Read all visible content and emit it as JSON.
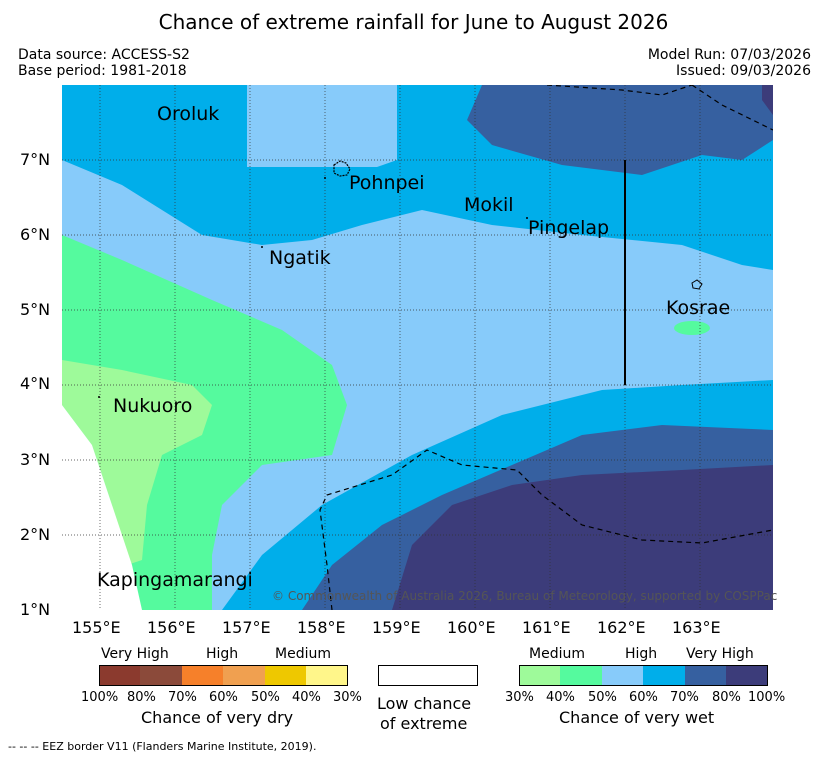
{
  "title": "Chance of extreme rainfall for June to August 2026",
  "meta": {
    "data_source": "Data source: ACCESS-S2",
    "base_period": "Base period: 1981-2018",
    "model_run": "Model Run: 07/03/2026",
    "issued": "Issued: 09/03/2026"
  },
  "map": {
    "lon_labels": [
      "155°E",
      "156°E",
      "157°E",
      "158°E",
      "159°E",
      "160°E",
      "161°E",
      "162°E",
      "163°E"
    ],
    "lat_labels": [
      "7°N",
      "6°N",
      "5°N",
      "4°N",
      "3°N",
      "2°N",
      "1°N"
    ],
    "places": {
      "oroluk": "Oroluk",
      "pohnpei": "Pohnpei",
      "mokil": "Mokil",
      "pingelap": "Pingelap",
      "ngatik": "Ngatik",
      "kosrae": "Kosrae",
      "nukuoro": "Nukuoro",
      "kapingamarangi": "Kapingamarangi"
    },
    "copyright": "© Commonwealth of Australia 2026, Bureau of Meteorology, supported by COSPPac"
  },
  "legend": {
    "dry": {
      "headers": [
        "Very High",
        "High",
        "Medium"
      ],
      "ticks": [
        "100%",
        "80%",
        "70%",
        "60%",
        "50%",
        "40%",
        "30%"
      ],
      "caption": "Chance of very dry",
      "colors": [
        "#8b3a2e",
        "#8b4a3a",
        "#f6802a",
        "#f0a050",
        "#eec800",
        "#fff68a"
      ]
    },
    "neutral": {
      "caption_line1": "Low chance",
      "caption_line2": "of extreme",
      "color": "#ffffff"
    },
    "wet": {
      "headers": [
        "Medium",
        "High",
        "Very High"
      ],
      "ticks": [
        "30%",
        "40%",
        "50%",
        "60%",
        "70%",
        "80%",
        "100%"
      ],
      "caption": "Chance of very wet",
      "colors": [
        "#9efa9a",
        "#55fa9e",
        "#87cbfa",
        "#00aeea",
        "#3660a0",
        "#3c3c7a"
      ]
    }
  },
  "colors": {
    "medium_wet": "#9efa9a",
    "medium_high_wet": "#55fa9e",
    "high_wet": "#87cbfa",
    "high2_wet": "#00aeea",
    "very_high_wet": "#3660a0",
    "very_high2_wet": "#3c3c7a"
  },
  "footnote": "--  --  -- EEZ border V11 (Flanders Marine Institute, 2019)."
}
